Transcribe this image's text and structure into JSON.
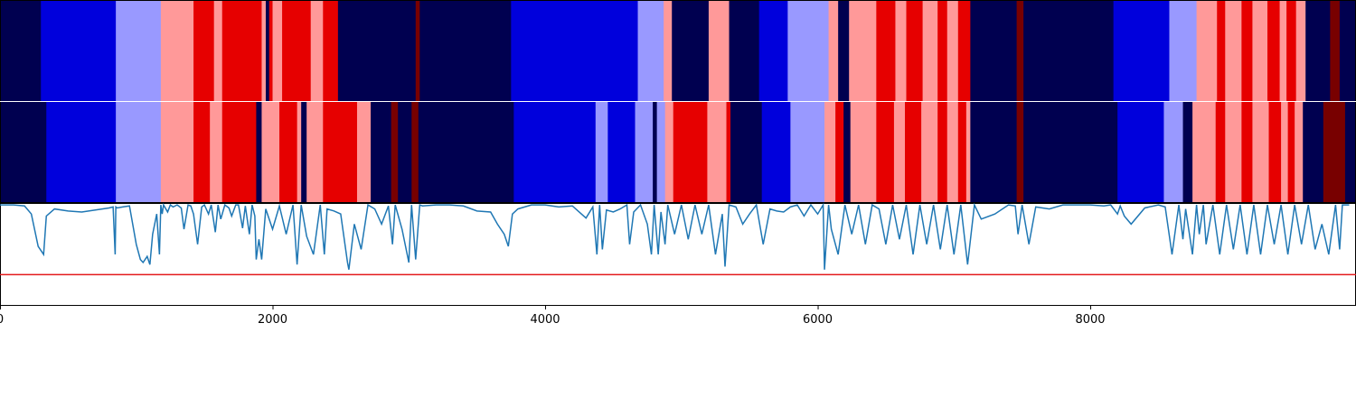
{
  "chart_data": {
    "type": "heatmap",
    "xlim": [
      0,
      9950
    ],
    "xticks": [
      0,
      2000,
      4000,
      6000,
      8000
    ],
    "tick_labels": [
      "0",
      "2000",
      "4000",
      "6000",
      "8000"
    ],
    "colors": {
      "0": "#000050",
      "1": "#0000dc",
      "2": "#9999ff",
      "3": "#ff9999",
      "4": "#e60000",
      "5": "#780000"
    },
    "tracks": [
      {
        "segments": [
          [
            0,
            300,
            0
          ],
          [
            300,
            850,
            1
          ],
          [
            850,
            1180,
            2
          ],
          [
            1180,
            1420,
            3
          ],
          [
            1420,
            1570,
            4
          ],
          [
            1570,
            1630,
            3
          ],
          [
            1630,
            1920,
            4
          ],
          [
            1920,
            1950,
            3
          ],
          [
            1950,
            1975,
            0
          ],
          [
            1975,
            2000,
            4
          ],
          [
            2000,
            2070,
            3
          ],
          [
            2070,
            2280,
            4
          ],
          [
            2280,
            2370,
            3
          ],
          [
            2370,
            2480,
            4
          ],
          [
            2480,
            3050,
            0
          ],
          [
            3050,
            3080,
            5
          ],
          [
            3080,
            3750,
            0
          ],
          [
            3750,
            4680,
            1
          ],
          [
            4680,
            4870,
            2
          ],
          [
            4870,
            4930,
            3
          ],
          [
            4930,
            5200,
            0
          ],
          [
            5200,
            5350,
            3
          ],
          [
            5350,
            5570,
            0
          ],
          [
            5570,
            5780,
            1
          ],
          [
            5780,
            6080,
            2
          ],
          [
            6080,
            6150,
            3
          ],
          [
            6150,
            6230,
            0
          ],
          [
            6230,
            6430,
            3
          ],
          [
            6430,
            6570,
            4
          ],
          [
            6570,
            6650,
            3
          ],
          [
            6650,
            6770,
            4
          ],
          [
            6770,
            6880,
            3
          ],
          [
            6880,
            6950,
            4
          ],
          [
            6950,
            7030,
            3
          ],
          [
            7030,
            7120,
            4
          ],
          [
            7120,
            7460,
            0
          ],
          [
            7460,
            7510,
            5
          ],
          [
            7510,
            8170,
            0
          ],
          [
            8170,
            8580,
            1
          ],
          [
            8580,
            8780,
            2
          ],
          [
            8780,
            8930,
            3
          ],
          [
            8930,
            8990,
            4
          ],
          [
            8990,
            9110,
            3
          ],
          [
            9110,
            9190,
            4
          ],
          [
            9190,
            9300,
            3
          ],
          [
            9300,
            9390,
            4
          ],
          [
            9390,
            9440,
            3
          ],
          [
            9440,
            9510,
            4
          ],
          [
            9510,
            9580,
            3
          ],
          [
            9580,
            9760,
            0
          ],
          [
            9760,
            9830,
            5
          ],
          [
            9830,
            9950,
            0
          ]
        ]
      },
      {
        "segments": [
          [
            0,
            340,
            0
          ],
          [
            340,
            850,
            1
          ],
          [
            850,
            1180,
            2
          ],
          [
            1180,
            1420,
            3
          ],
          [
            1420,
            1540,
            4
          ],
          [
            1540,
            1630,
            3
          ],
          [
            1630,
            1880,
            4
          ],
          [
            1880,
            1920,
            0
          ],
          [
            1920,
            2050,
            3
          ],
          [
            2050,
            2180,
            4
          ],
          [
            2180,
            2210,
            3
          ],
          [
            2210,
            2250,
            0
          ],
          [
            2250,
            2370,
            3
          ],
          [
            2370,
            2620,
            4
          ],
          [
            2620,
            2720,
            3
          ],
          [
            2720,
            2870,
            0
          ],
          [
            2870,
            2920,
            5
          ],
          [
            2920,
            3020,
            0
          ],
          [
            3020,
            3070,
            5
          ],
          [
            3070,
            3770,
            0
          ],
          [
            3770,
            4370,
            1
          ],
          [
            4370,
            4460,
            2
          ],
          [
            4460,
            4660,
            1
          ],
          [
            4660,
            4790,
            2
          ],
          [
            4790,
            4820,
            0
          ],
          [
            4820,
            4880,
            2
          ],
          [
            4880,
            4940,
            3
          ],
          [
            4940,
            5190,
            4
          ],
          [
            5190,
            5330,
            3
          ],
          [
            5330,
            5360,
            4
          ],
          [
            5360,
            5590,
            0
          ],
          [
            5590,
            5800,
            1
          ],
          [
            5800,
            6050,
            2
          ],
          [
            6050,
            6130,
            3
          ],
          [
            6130,
            6190,
            4
          ],
          [
            6190,
            6240,
            0
          ],
          [
            6240,
            6430,
            3
          ],
          [
            6430,
            6560,
            4
          ],
          [
            6560,
            6640,
            3
          ],
          [
            6640,
            6760,
            4
          ],
          [
            6760,
            6880,
            3
          ],
          [
            6880,
            6950,
            4
          ],
          [
            6950,
            7030,
            3
          ],
          [
            7030,
            7090,
            4
          ],
          [
            7090,
            7120,
            3
          ],
          [
            7120,
            7460,
            0
          ],
          [
            7460,
            7510,
            5
          ],
          [
            7510,
            8200,
            0
          ],
          [
            8200,
            8540,
            1
          ],
          [
            8540,
            8680,
            2
          ],
          [
            8680,
            8750,
            0
          ],
          [
            8750,
            8920,
            3
          ],
          [
            8920,
            8990,
            4
          ],
          [
            8990,
            9110,
            3
          ],
          [
            9110,
            9190,
            4
          ],
          [
            9190,
            9310,
            3
          ],
          [
            9310,
            9400,
            4
          ],
          [
            9400,
            9450,
            3
          ],
          [
            9450,
            9500,
            4
          ],
          [
            9500,
            9560,
            3
          ],
          [
            9560,
            9710,
            0
          ],
          [
            9710,
            9870,
            5
          ],
          [
            9870,
            9950,
            0
          ]
        ]
      }
    ],
    "line_series": {
      "color": "#1f77b4",
      "ylim": [
        0,
        1
      ],
      "x": [
        0,
        100,
        180,
        230,
        280,
        320,
        340,
        400,
        500,
        600,
        700,
        800,
        830,
        845,
        850,
        860,
        900,
        950,
        1000,
        1030,
        1050,
        1080,
        1100,
        1120,
        1150,
        1170,
        1180,
        1190,
        1200,
        1230,
        1250,
        1270,
        1300,
        1330,
        1350,
        1380,
        1400,
        1420,
        1450,
        1480,
        1500,
        1530,
        1550,
        1580,
        1600,
        1620,
        1650,
        1680,
        1700,
        1730,
        1750,
        1780,
        1800,
        1830,
        1850,
        1870,
        1880,
        1900,
        1920,
        1950,
        2000,
        2050,
        2100,
        2150,
        2180,
        2200,
        2210,
        2250,
        2300,
        2350,
        2380,
        2400,
        2450,
        2500,
        2550,
        2560,
        2600,
        2650,
        2700,
        2750,
        2800,
        2850,
        2880,
        2900,
        2950,
        3000,
        3020,
        3050,
        3080,
        3100,
        3200,
        3300,
        3400,
        3500,
        3600,
        3650,
        3700,
        3730,
        3760,
        3800,
        3900,
        4000,
        4100,
        4200,
        4300,
        4350,
        4380,
        4400,
        4420,
        4450,
        4500,
        4550,
        4600,
        4620,
        4650,
        4700,
        4750,
        4780,
        4800,
        4830,
        4850,
        4880,
        4900,
        4950,
        5000,
        5050,
        5100,
        5150,
        5200,
        5250,
        5300,
        5320,
        5350,
        5400,
        5450,
        5500,
        5550,
        5600,
        5650,
        5700,
        5750,
        5800,
        5850,
        5900,
        5950,
        6000,
        6040,
        6050,
        6080,
        6100,
        6150,
        6200,
        6250,
        6300,
        6350,
        6400,
        6450,
        6500,
        6550,
        6600,
        6650,
        6700,
        6750,
        6800,
        6850,
        6900,
        6950,
        7000,
        7050,
        7100,
        7150,
        7200,
        7300,
        7400,
        7450,
        7470,
        7500,
        7550,
        7600,
        7700,
        7800,
        7900,
        8000,
        8100,
        8150,
        8200,
        8220,
        8250,
        8300,
        8400,
        8500,
        8550,
        8600,
        8650,
        8680,
        8700,
        8750,
        8780,
        8800,
        8830,
        8850,
        8900,
        8950,
        9000,
        9050,
        9100,
        9150,
        9200,
        9250,
        9300,
        9350,
        9400,
        9450,
        9500,
        9550,
        9600,
        9650,
        9700,
        9750,
        9800,
        9830,
        9850,
        9900,
        9950
      ],
      "y": [
        0.99,
        0.99,
        0.98,
        0.9,
        0.58,
        0.5,
        0.88,
        0.95,
        0.93,
        0.92,
        0.94,
        0.96,
        0.97,
        0.5,
        0.97,
        0.96,
        0.97,
        0.98,
        0.6,
        0.45,
        0.42,
        0.48,
        0.4,
        0.7,
        0.9,
        0.5,
        0.99,
        0.9,
        0.99,
        0.92,
        0.99,
        0.97,
        0.99,
        0.96,
        0.75,
        0.99,
        0.98,
        0.9,
        0.6,
        0.97,
        0.99,
        0.9,
        0.99,
        0.72,
        0.99,
        0.85,
        0.99,
        0.96,
        0.88,
        0.99,
        0.99,
        0.76,
        0.98,
        0.7,
        0.99,
        0.88,
        0.45,
        0.65,
        0.45,
        0.95,
        0.75,
        0.98,
        0.7,
        0.99,
        0.4,
        0.8,
        0.99,
        0.68,
        0.5,
        0.99,
        0.5,
        0.95,
        0.93,
        0.9,
        0.42,
        0.35,
        0.8,
        0.55,
        0.99,
        0.95,
        0.8,
        0.98,
        0.6,
        0.99,
        0.75,
        0.42,
        0.99,
        0.45,
        0.99,
        0.98,
        0.99,
        0.99,
        0.98,
        0.93,
        0.92,
        0.8,
        0.7,
        0.58,
        0.9,
        0.95,
        0.99,
        0.99,
        0.97,
        0.98,
        0.86,
        0.97,
        0.5,
        0.99,
        0.55,
        0.94,
        0.92,
        0.95,
        0.99,
        0.6,
        0.92,
        0.99,
        0.8,
        0.5,
        0.99,
        0.5,
        0.92,
        0.6,
        0.99,
        0.7,
        0.99,
        0.65,
        0.99,
        0.7,
        0.99,
        0.5,
        0.9,
        0.38,
        0.99,
        0.97,
        0.8,
        0.9,
        0.99,
        0.6,
        0.95,
        0.93,
        0.92,
        0.97,
        0.99,
        0.88,
        0.99,
        0.9,
        0.99,
        0.35,
        0.99,
        0.75,
        0.5,
        0.99,
        0.7,
        0.99,
        0.6,
        0.99,
        0.95,
        0.6,
        0.99,
        0.65,
        0.99,
        0.5,
        0.99,
        0.6,
        0.99,
        0.55,
        0.99,
        0.5,
        0.99,
        0.4,
        0.99,
        0.85,
        0.9,
        0.99,
        0.98,
        0.7,
        0.99,
        0.6,
        0.97,
        0.95,
        0.99,
        0.99,
        0.99,
        0.98,
        0.99,
        0.9,
        0.98,
        0.88,
        0.8,
        0.96,
        0.99,
        0.97,
        0.5,
        0.99,
        0.65,
        0.95,
        0.5,
        0.99,
        0.7,
        0.99,
        0.6,
        0.99,
        0.5,
        0.99,
        0.55,
        0.99,
        0.5,
        0.99,
        0.5,
        0.99,
        0.6,
        0.99,
        0.5,
        0.99,
        0.6,
        0.99,
        0.55,
        0.8,
        0.5,
        0.99,
        0.55,
        0.99,
        0.99
      ]
    },
    "threshold_line": {
      "y": 0.3,
      "color": "#e31a1c"
    }
  }
}
